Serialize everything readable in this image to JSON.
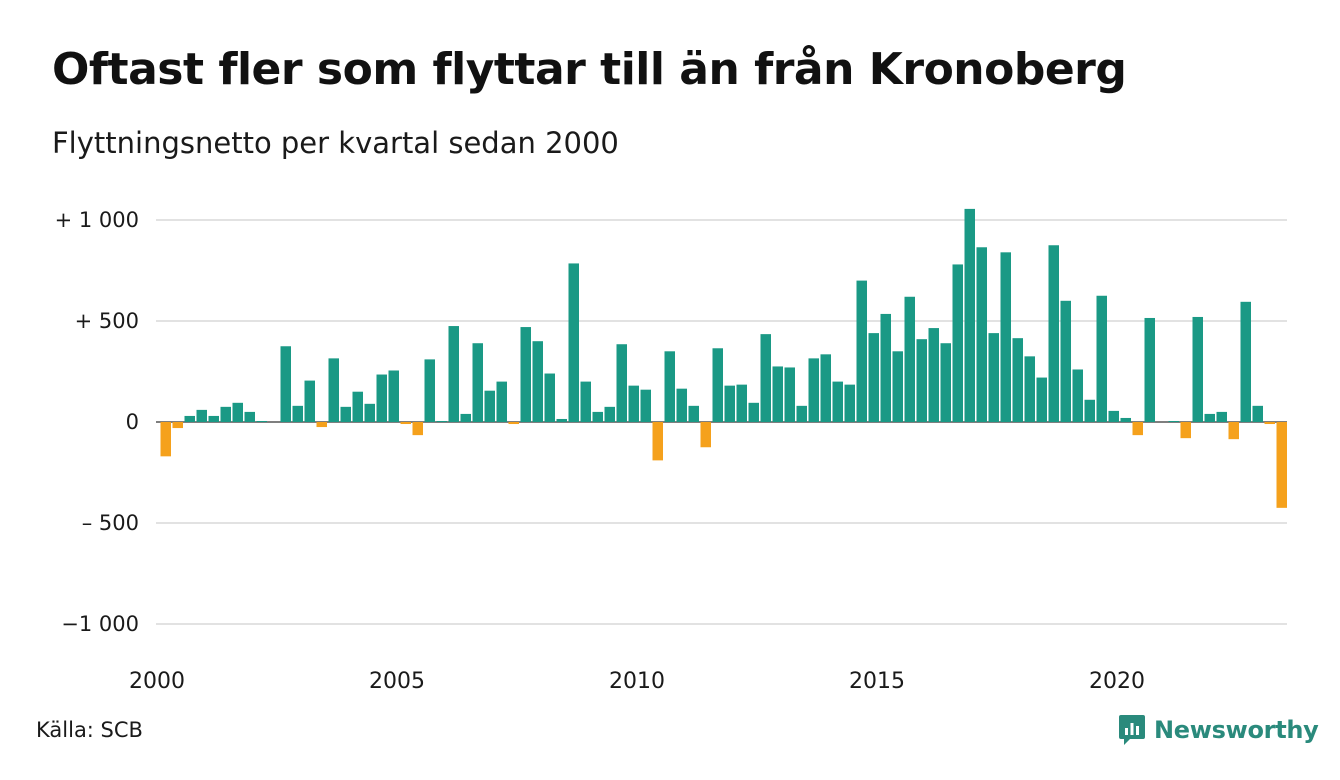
{
  "title": "Oftast fler som flyttar till än från Kronoberg",
  "subtitle": "Flyttningsnetto per kvartal sedan 2000",
  "source": "Källa: SCB",
  "brand": "Newsworthy",
  "colors": {
    "positive": "#1a9985",
    "negative": "#f5a11c",
    "grid": "#e2e2e2",
    "brand": "#2a8a7c"
  },
  "chart_data": {
    "type": "bar",
    "x_start_year": 2000,
    "periods_per_year": 4,
    "xticks": [
      {
        "year": 2000,
        "label": "2000"
      },
      {
        "year": 2005,
        "label": "2005"
      },
      {
        "year": 2010,
        "label": "2010"
      },
      {
        "year": 2015,
        "label": "2015"
      },
      {
        "year": 2020,
        "label": "2020"
      }
    ],
    "yticks": [
      {
        "value": 1000,
        "label": "+ 1 000"
      },
      {
        "value": 500,
        "label": "+   500"
      },
      {
        "value": 0,
        "label": "0"
      },
      {
        "value": -500,
        "label": "–  500"
      },
      {
        "value": -1000,
        "label": "−1 000"
      }
    ],
    "ylim": [
      -1000,
      1000
    ],
    "grid": true,
    "values": [
      -170,
      -30,
      30,
      60,
      30,
      75,
      95,
      50,
      5,
      0,
      375,
      80,
      205,
      -25,
      315,
      75,
      150,
      90,
      235,
      255,
      -10,
      -65,
      310,
      5,
      475,
      40,
      390,
      155,
      200,
      -10,
      470,
      400,
      240,
      15,
      785,
      200,
      50,
      75,
      385,
      180,
      160,
      -190,
      350,
      165,
      80,
      -125,
      365,
      180,
      185,
      95,
      435,
      275,
      270,
      80,
      315,
      335,
      200,
      185,
      700,
      440,
      535,
      350,
      620,
      410,
      465,
      390,
      780,
      1055,
      865,
      440,
      840,
      415,
      325,
      220,
      875,
      600,
      260,
      110,
      625,
      55,
      20,
      -65,
      515,
      0,
      5,
      -80,
      520,
      40,
      50,
      -85,
      595,
      80,
      -10,
      -425
    ]
  }
}
